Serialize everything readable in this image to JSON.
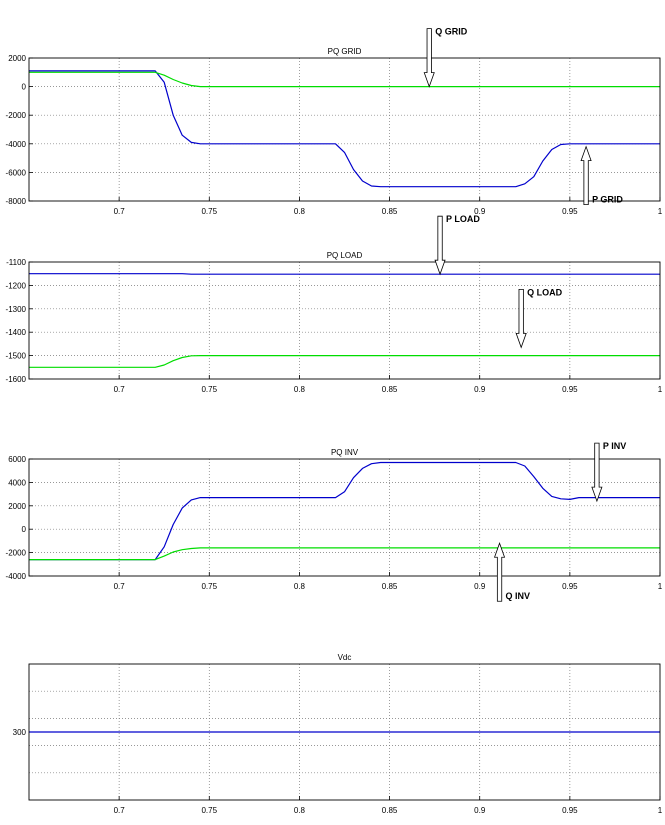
{
  "chart_data": [
    {
      "type": "line",
      "title": "PQ GRID",
      "xlim": [
        0.65,
        1.0
      ],
      "ylim": [
        -8000,
        2000
      ],
      "xticks": [
        "0.7",
        "0.75",
        "0.8",
        "0.85",
        "0.9",
        "0.95",
        "1"
      ],
      "yticks": [
        "2000",
        "0",
        "-2000",
        "-4000",
        "-6000",
        "-8000"
      ],
      "grid": true,
      "series": [
        {
          "color": "#0000cc",
          "points": [
            [
              0.65,
              1100
            ],
            [
              0.72,
              1100
            ],
            [
              0.725,
              300
            ],
            [
              0.73,
              -2000
            ],
            [
              0.735,
              -3400
            ],
            [
              0.74,
              -3900
            ],
            [
              0.745,
              -4000
            ],
            [
              0.82,
              -4000
            ],
            [
              0.825,
              -4600
            ],
            [
              0.83,
              -5800
            ],
            [
              0.835,
              -6600
            ],
            [
              0.84,
              -6950
            ],
            [
              0.845,
              -7000
            ],
            [
              0.92,
              -7000
            ],
            [
              0.925,
              -6800
            ],
            [
              0.93,
              -6300
            ],
            [
              0.935,
              -5200
            ],
            [
              0.94,
              -4400
            ],
            [
              0.945,
              -4050
            ],
            [
              0.95,
              -4000
            ],
            [
              1.0,
              -4000
            ]
          ]
        },
        {
          "color": "#00dd00",
          "points": [
            [
              0.65,
              1000
            ],
            [
              0.72,
              1000
            ],
            [
              0.725,
              800
            ],
            [
              0.73,
              500
            ],
            [
              0.735,
              250
            ],
            [
              0.74,
              80
            ],
            [
              0.745,
              0
            ],
            [
              1.0,
              0
            ]
          ]
        }
      ],
      "annotations": [
        {
          "label": "Q GRID",
          "x": 0.872,
          "y_tip": 0,
          "direction": "down"
        },
        {
          "label": "P GRID",
          "x": 0.959,
          "y_tip": -4200,
          "direction": "up"
        }
      ]
    },
    {
      "type": "line",
      "title": "PQ LOAD",
      "xlim": [
        0.65,
        1.0
      ],
      "ylim": [
        -1600,
        -1100
      ],
      "xticks": [
        "0.7",
        "0.75",
        "0.8",
        "0.85",
        "0.9",
        "0.95",
        "1"
      ],
      "yticks": [
        "-1100",
        "-1200",
        "-1300",
        "-1400",
        "-1500",
        "-1600"
      ],
      "grid": true,
      "series": [
        {
          "color": "#0000cc",
          "points": [
            [
              0.65,
              -1150
            ],
            [
              0.735,
              -1150
            ],
            [
              0.74,
              -1152
            ],
            [
              1.0,
              -1152
            ]
          ]
        },
        {
          "color": "#00dd00",
          "points": [
            [
              0.65,
              -1550
            ],
            [
              0.72,
              -1550
            ],
            [
              0.725,
              -1540
            ],
            [
              0.73,
              -1522
            ],
            [
              0.735,
              -1508
            ],
            [
              0.74,
              -1501
            ],
            [
              0.745,
              -1500
            ],
            [
              1.0,
              -1500
            ]
          ]
        }
      ],
      "annotations": [
        {
          "label": "P LOAD",
          "x": 0.878,
          "y_tip": -1152,
          "direction": "down"
        },
        {
          "label": "Q LOAD",
          "x": 0.923,
          "y_tip": -1465,
          "direction": "down"
        }
      ]
    },
    {
      "type": "line",
      "title": "PQ INV",
      "xlim": [
        0.65,
        1.0
      ],
      "ylim": [
        -4000,
        6000
      ],
      "xticks": [
        "0.7",
        "0.75",
        "0.8",
        "0.85",
        "0.9",
        "0.95",
        "1"
      ],
      "yticks": [
        "6000",
        "4000",
        "2000",
        "0",
        "-2000",
        "-4000"
      ],
      "grid": true,
      "series": [
        {
          "color": "#0000cc",
          "points": [
            [
              0.65,
              -2600
            ],
            [
              0.72,
              -2600
            ],
            [
              0.725,
              -1500
            ],
            [
              0.73,
              400
            ],
            [
              0.735,
              1800
            ],
            [
              0.74,
              2500
            ],
            [
              0.745,
              2700
            ],
            [
              0.82,
              2700
            ],
            [
              0.825,
              3200
            ],
            [
              0.83,
              4400
            ],
            [
              0.835,
              5200
            ],
            [
              0.84,
              5600
            ],
            [
              0.845,
              5700
            ],
            [
              0.92,
              5700
            ],
            [
              0.925,
              5400
            ],
            [
              0.93,
              4500
            ],
            [
              0.935,
              3500
            ],
            [
              0.94,
              2800
            ],
            [
              0.945,
              2600
            ],
            [
              0.95,
              2550
            ],
            [
              0.955,
              2700
            ],
            [
              1.0,
              2700
            ]
          ]
        },
        {
          "color": "#00dd00",
          "points": [
            [
              0.65,
              -2600
            ],
            [
              0.72,
              -2600
            ],
            [
              0.725,
              -2300
            ],
            [
              0.73,
              -1950
            ],
            [
              0.735,
              -1750
            ],
            [
              0.74,
              -1650
            ],
            [
              0.745,
              -1600
            ],
            [
              1.0,
              -1600
            ]
          ]
        }
      ],
      "annotations": [
        {
          "label": "P INV",
          "x": 0.965,
          "y_tip": 2400,
          "direction": "down"
        },
        {
          "label": "Q INV",
          "x": 0.911,
          "y_tip": -1200,
          "direction": "up"
        }
      ]
    },
    {
      "type": "line",
      "title": "Vdc",
      "xlim": [
        0.65,
        1.0
      ],
      "ylim": [
        240,
        360
      ],
      "xticks": [
        "0.7",
        "0.75",
        "0.8",
        "0.85",
        "0.9",
        "0.95",
        "1"
      ],
      "yticks": [
        "300"
      ],
      "ytick_values": [
        300
      ],
      "ygrid_values": [
        336,
        312,
        288,
        264
      ],
      "grid": true,
      "series": [
        {
          "color": "#0000cc",
          "points": [
            [
              0.65,
              300
            ],
            [
              1.0,
              300
            ]
          ]
        }
      ],
      "annotations": []
    }
  ]
}
